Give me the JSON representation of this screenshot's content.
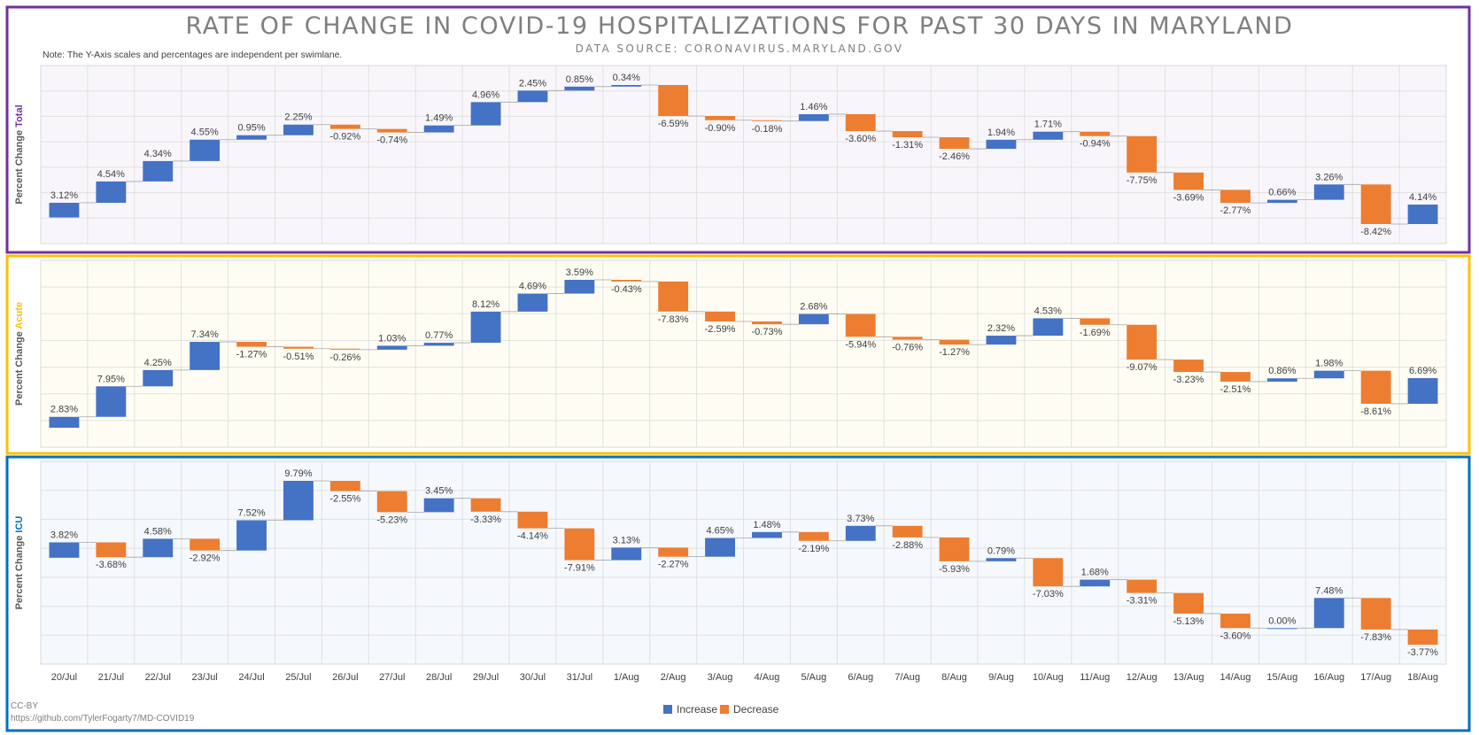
{
  "header": {
    "title": "RATE OF CHANGE IN COVID-19 HOSPITALIZATIONS FOR PAST 30 DAYS IN MARYLAND",
    "subtitle": "DATA SOURCE: CORONAVIRUS.MARYLAND.GOV",
    "note": "Note: The Y-Axis scales and percentages are independent per swimlane."
  },
  "footer": {
    "credit": "CC-BY",
    "url": "https://github.com/TylerFogarty7/MD-COVID19"
  },
  "legend": [
    {
      "label": "Increase",
      "color": "#4472c4"
    },
    {
      "label": "Decrease",
      "color": "#ed7d31"
    }
  ],
  "colors": {
    "increase": "#4472c4",
    "decrease": "#ed7d31",
    "axis_text": "#404040",
    "title_text": "#7f7f7f"
  },
  "chart_data": {
    "type": "waterfall",
    "categories": [
      "20/Jul",
      "21/Jul",
      "22/Jul",
      "23/Jul",
      "24/Jul",
      "25/Jul",
      "26/Jul",
      "27/Jul",
      "28/Jul",
      "29/Jul",
      "30/Jul",
      "31/Jul",
      "1/Aug",
      "2/Aug",
      "3/Aug",
      "4/Aug",
      "5/Aug",
      "6/Aug",
      "7/Aug",
      "8/Aug",
      "9/Aug",
      "10/Aug",
      "11/Aug",
      "12/Aug",
      "13/Aug",
      "14/Aug",
      "15/Aug",
      "16/Aug",
      "17/Aug",
      "18/Aug"
    ],
    "value_format": "percent",
    "lanes": [
      {
        "ylabel_prefix": "Percent Change ",
        "ylabel_name": "Total",
        "color": "#7030a0",
        "background": "#f8f6fb",
        "values": [
          3.12,
          4.54,
          4.34,
          4.55,
          0.95,
          2.25,
          -0.92,
          -0.74,
          1.49,
          4.96,
          2.45,
          0.85,
          0.34,
          -6.59,
          -0.9,
          -0.18,
          1.46,
          -3.6,
          -1.31,
          -2.46,
          1.94,
          1.71,
          -0.94,
          -7.75,
          -3.69,
          -2.77,
          0.66,
          3.26,
          -8.42,
          4.14
        ],
        "value_labels": [
          "3.12%",
          "4.54%",
          "4.34%",
          "4.55%",
          "0.95%",
          "2.25%",
          "-0.92%",
          "-0.74%",
          "1.49%",
          "4.96%",
          "2.45%",
          "0.85%",
          "0.34%",
          "-6.59%",
          "-0.90%",
          "-0.18%",
          "1.46%",
          "-3.60%",
          "-1.31%",
          "-2.46%",
          "1.94%",
          "1.71%",
          "-0.94%",
          "-7.75%",
          "-3.69%",
          "-2.77%",
          "0.66%",
          "3.26%",
          "-8.42%",
          "4.14%"
        ]
      },
      {
        "ylabel_prefix": "Percent Change  ",
        "ylabel_name": "Acute",
        "color": "#ffc000",
        "background": "#fffdf3",
        "values": [
          2.83,
          7.95,
          4.25,
          7.34,
          -1.27,
          -0.51,
          -0.26,
          1.03,
          0.77,
          8.12,
          4.69,
          3.59,
          -0.43,
          -7.83,
          -2.59,
          -0.73,
          2.68,
          -5.94,
          -0.76,
          -1.27,
          2.32,
          4.53,
          -1.69,
          -9.07,
          -3.23,
          -2.51,
          0.86,
          1.98,
          -8.61,
          6.69
        ],
        "value_labels": [
          "2.83%",
          "7.95%",
          "4.25%",
          "7.34%",
          "-1.27%",
          "-0.51%",
          "-0.26%",
          "1.03%",
          "0.77%",
          "8.12%",
          "4.69%",
          "3.59%",
          "-0.43%",
          "-7.83%",
          "-2.59%",
          "-0.73%",
          "2.68%",
          "-5.94%",
          "-0.76%",
          "-1.27%",
          "2.32%",
          "4.53%",
          "-1.69%",
          "-9.07%",
          "-3.23%",
          "-2.51%",
          "0.86%",
          "1.98%",
          "-8.61%",
          "6.69%"
        ]
      },
      {
        "ylabel_prefix": "Percent Change ",
        "ylabel_name": "ICU",
        "color": "#0070c0",
        "background": "#f5f8fc",
        "values": [
          3.82,
          -3.68,
          4.58,
          -2.92,
          7.52,
          9.79,
          -2.55,
          -5.23,
          3.45,
          -3.33,
          -4.14,
          -7.91,
          3.13,
          -2.27,
          4.65,
          1.48,
          -2.19,
          3.73,
          -2.88,
          -5.93,
          0.79,
          -7.03,
          1.68,
          -3.31,
          -5.13,
          -3.6,
          0.0,
          7.48,
          -7.83,
          -3.77
        ],
        "value_labels": [
          "3.82%",
          "-3.68%",
          "4.58%",
          "-2.92%",
          "7.52%",
          "9.79%",
          "-2.55%",
          "-5.23%",
          "3.45%",
          "-3.33%",
          "-4.14%",
          "-7.91%",
          "3.13%",
          "-2.27%",
          "4.65%",
          "1.48%",
          "-2.19%",
          "3.73%",
          "-2.88%",
          "-5.93%",
          "0.79%",
          "-7.03%",
          "1.68%",
          "-3.31%",
          "-5.13%",
          "-3.60%",
          "0.00%",
          "7.48%",
          "-7.83%",
          "-3.77%"
        ]
      }
    ]
  }
}
